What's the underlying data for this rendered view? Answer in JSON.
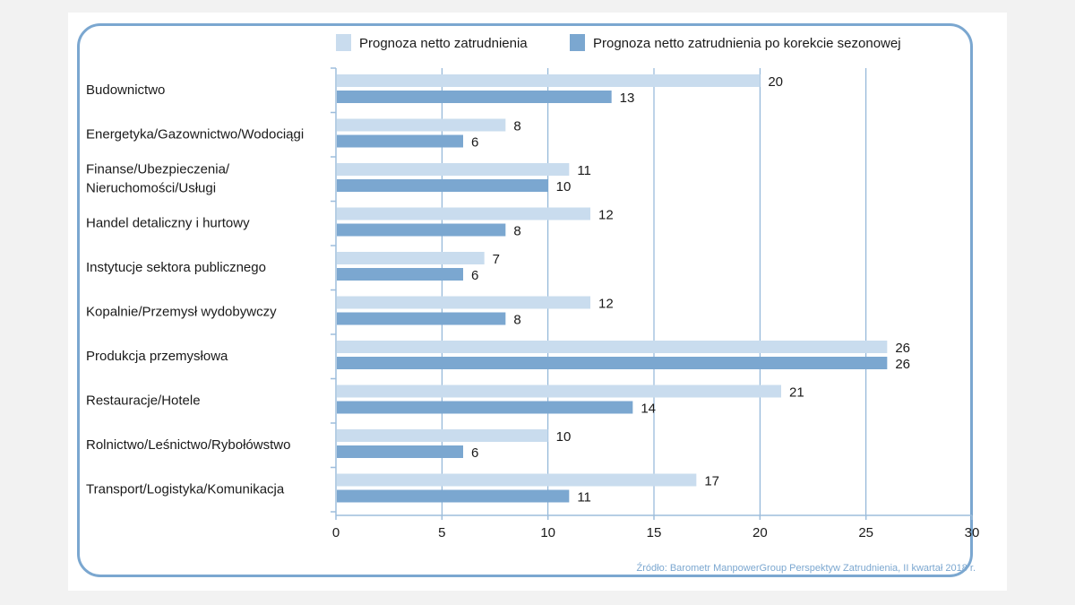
{
  "chart_data": {
    "type": "bar",
    "orientation": "horizontal",
    "categories": [
      [
        "Budownictwo"
      ],
      [
        "Energetyka/Gazownictwo/Wodociągi"
      ],
      [
        "Finanse/Ubezpieczenia/",
        "Nieruchomości/Usługi"
      ],
      [
        "Handel detaliczny i hurtowy"
      ],
      [
        "Instytucje sektora publicznego"
      ],
      [
        "Kopalnie/Przemysł wydobywczy"
      ],
      [
        "Produkcja przemysłowa"
      ],
      [
        "Restauracje/Hotele"
      ],
      [
        "Rolnictwo/Leśnictwo/Rybołówstwo"
      ],
      [
        "Transport/Logistyka/Komunikacja"
      ]
    ],
    "series": [
      {
        "name": "Prognoza netto zatrudnienia",
        "color": "#c9dcee",
        "values": [
          20,
          8,
          11,
          12,
          7,
          12,
          26,
          21,
          10,
          17
        ]
      },
      {
        "name": "Prognoza netto zatrudnienia po korekcie sezonowej",
        "color": "#7ba7d0",
        "values": [
          13,
          6,
          10,
          8,
          6,
          8,
          26,
          14,
          6,
          11
        ]
      }
    ],
    "xlim": [
      0,
      30
    ],
    "xticks": [
      0,
      5,
      10,
      15,
      20,
      25,
      30
    ],
    "grid": true,
    "legend_position": "top",
    "data_labels": true
  },
  "source": "Źródło: Barometr ManpowerGroup Perspektyw Zatrudnienia, II kwartał 2018 r.",
  "colors": {
    "frame": "#7ba7d0",
    "gridline": "#7ba7d0",
    "axis": "#9dbddc"
  }
}
